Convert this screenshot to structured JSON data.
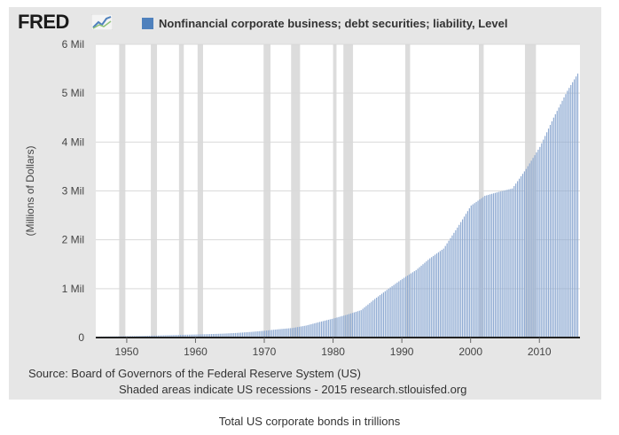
{
  "logo": {
    "text": "FRED",
    "icon": "fred-sparkline-icon"
  },
  "legend": {
    "label": "Nonfinancial corporate business; debt securities; liability, Level",
    "color": "#4f81bd"
  },
  "source_text": "Source: Board of Governors of the Federal Reserve System (US)",
  "note_text": "Shaded areas indicate US recessions - 2015 research.stlouisfed.org",
  "caption": "Total US corporate bonds in trillions",
  "chart_data": {
    "type": "bar",
    "title": "",
    "xlabel": "",
    "ylabel": "(Millions of Dollars)",
    "xlim": [
      1945.5,
      2015.9
    ],
    "ylim": [
      0,
      6000000
    ],
    "yticks": [
      {
        "value": 0,
        "label": "0"
      },
      {
        "value": 1000000,
        "label": "1 Mil"
      },
      {
        "value": 2000000,
        "label": "2 Mil"
      },
      {
        "value": 3000000,
        "label": "3 Mil"
      },
      {
        "value": 4000000,
        "label": "4 Mil"
      },
      {
        "value": 5000000,
        "label": "5 Mil"
      },
      {
        "value": 6000000,
        "label": "6 Mil"
      }
    ],
    "xticks": [
      {
        "value": 1950,
        "label": "1950"
      },
      {
        "value": 1960,
        "label": "1960"
      },
      {
        "value": 1970,
        "label": "1970"
      },
      {
        "value": 1980,
        "label": "1980"
      },
      {
        "value": 1990,
        "label": "1990"
      },
      {
        "value": 2000,
        "label": "2000"
      },
      {
        "value": 2010,
        "label": "2010"
      }
    ],
    "grid": "horizontal",
    "bar_color": "#8eaad2",
    "recessions": [
      [
        1948.9,
        1949.8
      ],
      [
        1953.5,
        1954.4
      ],
      [
        1957.6,
        1958.3
      ],
      [
        1960.3,
        1961.1
      ],
      [
        1969.9,
        1970.9
      ],
      [
        1973.9,
        1975.2
      ],
      [
        1980.0,
        1980.5
      ],
      [
        1981.5,
        1982.9
      ],
      [
        1990.5,
        1991.2
      ],
      [
        2001.2,
        2001.9
      ],
      [
        2007.9,
        2009.5
      ]
    ],
    "series": [
      {
        "name": "Nonfinancial corporate business; debt securities; liability, Level",
        "x": [
          1946,
          1948,
          1950,
          1952,
          1954,
          1956,
          1958,
          1960,
          1962,
          1964,
          1966,
          1968,
          1970,
          1972,
          1974,
          1976,
          1978,
          1980,
          1982,
          1984,
          1986,
          1988,
          1990,
          1992,
          1994,
          1996,
          1998,
          2000,
          2002,
          2004,
          2006,
          2008,
          2010,
          2012,
          2014,
          2015.5
        ],
        "values": [
          20000,
          24000,
          28000,
          34000,
          40000,
          48000,
          55000,
          62000,
          70000,
          80000,
          95000,
          115000,
          140000,
          170000,
          195000,
          245000,
          320000,
          390000,
          470000,
          560000,
          790000,
          1000000,
          1200000,
          1380000,
          1620000,
          1820000,
          2250000,
          2700000,
          2900000,
          2980000,
          3050000,
          3450000,
          3900000,
          4500000,
          5050000,
          5400000
        ]
      }
    ]
  }
}
